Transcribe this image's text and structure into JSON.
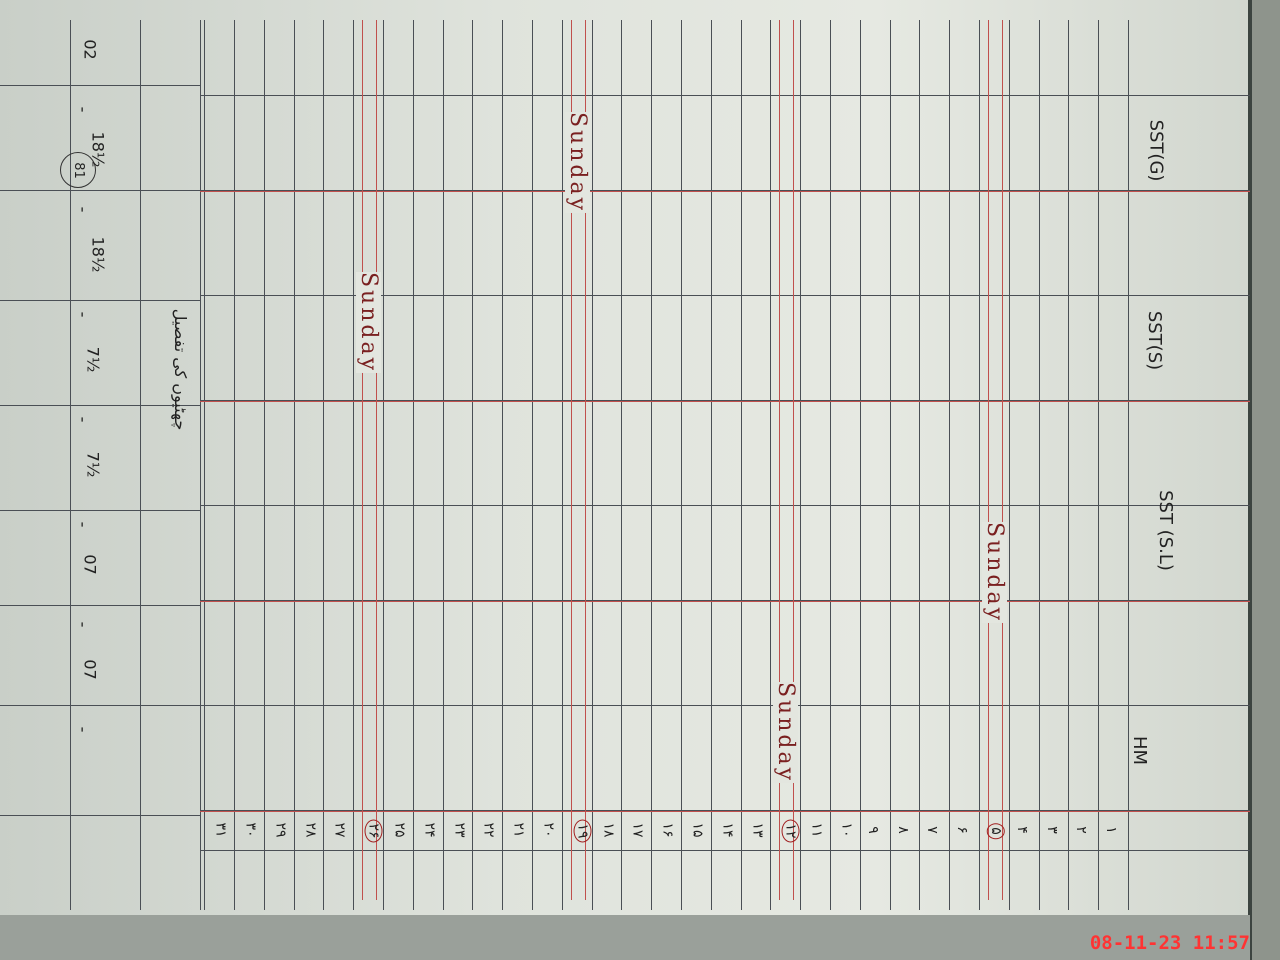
{
  "page_number": "81",
  "columns": [
    {
      "label": "SST(G)"
    },
    {
      "label": "SST(S)"
    },
    {
      "label": "SST (S.L)"
    },
    {
      "label": "HM"
    }
  ],
  "days": [
    "۱",
    "۲",
    "۳",
    "۴",
    "۵",
    "۶",
    "۷",
    "۸",
    "۹",
    "۱۰",
    "۱۱",
    "۱۲",
    "۱۳",
    "۱۴",
    "۱۵",
    "۱۶",
    "۱۷",
    "۱۸",
    "۱۹",
    "۲۰",
    "۲۱",
    "۲۲",
    "۲۳",
    "۲۴",
    "۲۵",
    "۲۶",
    "۲۷",
    "۲۸",
    "۲۹",
    "۳۰",
    "۳۱"
  ],
  "sundays": [
    {
      "day": "۵",
      "label": "Sunday"
    },
    {
      "day": "۱۲",
      "label": "Sunday"
    },
    {
      "day": "۱۹",
      "label": "Sunday"
    },
    {
      "day": "۲۶",
      "label": "Sunday"
    }
  ],
  "summary": {
    "title": "چھٹیوں کی تفصیل",
    "values": [
      "02",
      "-",
      "18½",
      "-",
      "18½",
      "-",
      "7½",
      "-",
      "7½",
      "-",
      "07",
      "-",
      "07",
      "-"
    ]
  },
  "timestamp": "08-11-23  11:57"
}
